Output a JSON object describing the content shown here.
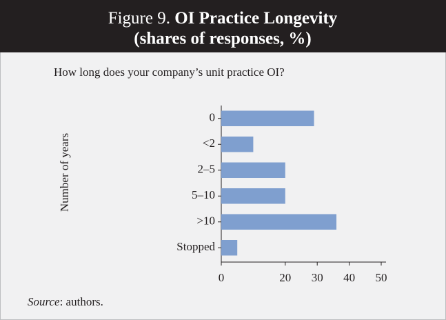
{
  "chart_data": {
    "type": "barh",
    "figure_label": "Figure 9.",
    "title": "OI Practice Longevity",
    "subtitle": "(shares of responses, %)",
    "question": "How long does your company’s unit practice OI?",
    "ylabel": "Number of years",
    "categories": [
      "0",
      "<2",
      "2–5",
      "5–10",
      ">10",
      "Stopped"
    ],
    "values": [
      29,
      10,
      20,
      20,
      36,
      5
    ],
    "color": "#7f9fcf",
    "xlim": [
      0,
      50
    ],
    "xticks": [
      0,
      20,
      30,
      40,
      50
    ],
    "grid": false,
    "source_label": "Source",
    "source_text": ": authors."
  }
}
